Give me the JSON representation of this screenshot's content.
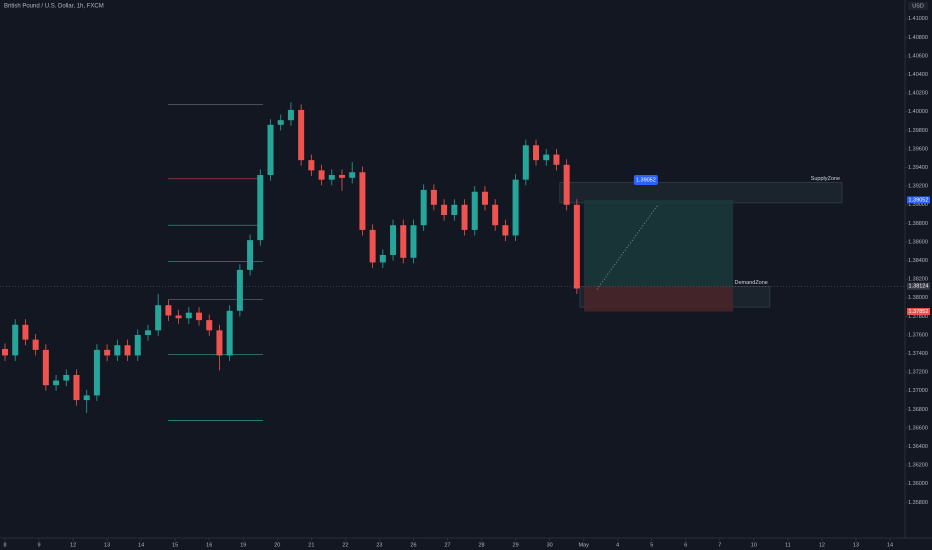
{
  "chart_data": {
    "type": "candlestick",
    "title": "British Pound / U.S. Dollar, 1h, FXCM",
    "currency": "USD",
    "up_color": "#26a69a",
    "down_color": "#ef5350",
    "xlim": [
      -0.147,
      26.44
    ],
    "ylim": [
      1.35417,
      1.41202
    ],
    "xticks": [
      {
        "value": 0,
        "label": "8"
      },
      {
        "value": 1,
        "label": "9"
      },
      {
        "value": 2,
        "label": "12"
      },
      {
        "value": 3,
        "label": "13"
      },
      {
        "value": 4,
        "label": "14"
      },
      {
        "value": 5,
        "label": "15"
      },
      {
        "value": 6,
        "label": "16"
      },
      {
        "value": 7,
        "label": "19"
      },
      {
        "value": 8,
        "label": "20"
      },
      {
        "value": 9,
        "label": "21"
      },
      {
        "value": 10,
        "label": "22"
      },
      {
        "value": 11,
        "label": "23"
      },
      {
        "value": 12,
        "label": "26"
      },
      {
        "value": 13,
        "label": "27"
      },
      {
        "value": 14,
        "label": "28"
      },
      {
        "value": 15,
        "label": "29"
      },
      {
        "value": 16,
        "label": "30"
      },
      {
        "value": 17,
        "label": "May"
      },
      {
        "value": 18,
        "label": "4"
      },
      {
        "value": 19,
        "label": "5"
      },
      {
        "value": 20,
        "label": "6"
      },
      {
        "value": 21,
        "label": "7"
      },
      {
        "value": 22,
        "label": "10"
      },
      {
        "value": 23,
        "label": "11"
      },
      {
        "value": 24,
        "label": "12"
      },
      {
        "value": 25,
        "label": "13"
      },
      {
        "value": 26,
        "label": "14"
      }
    ],
    "yticks": [
      {
        "value": 1.358,
        "label": "1.35800"
      },
      {
        "value": 1.36,
        "label": "1.36000"
      },
      {
        "value": 1.362,
        "label": "1.36200"
      },
      {
        "value": 1.364,
        "label": "1.36400"
      },
      {
        "value": 1.366,
        "label": "1.36600"
      },
      {
        "value": 1.368,
        "label": "1.36800"
      },
      {
        "value": 1.37,
        "label": "1.37000"
      },
      {
        "value": 1.372,
        "label": "1.37200"
      },
      {
        "value": 1.374,
        "label": "1.37400"
      },
      {
        "value": 1.376,
        "label": "1.37600"
      },
      {
        "value": 1.378,
        "label": "1.37800"
      },
      {
        "value": 1.38,
        "label": "1.38000"
      },
      {
        "value": 1.382,
        "label": "1.38200"
      },
      {
        "value": 1.384,
        "label": "1.38400"
      },
      {
        "value": 1.386,
        "label": "1.38600"
      },
      {
        "value": 1.388,
        "label": "1.38800"
      },
      {
        "value": 1.39,
        "label": "1.39000"
      },
      {
        "value": 1.392,
        "label": "1.39200"
      },
      {
        "value": 1.394,
        "label": "1.39400"
      },
      {
        "value": 1.396,
        "label": "1.39600"
      },
      {
        "value": 1.398,
        "label": "1.39800"
      },
      {
        "value": 1.4,
        "label": "1.40000"
      },
      {
        "value": 1.402,
        "label": "1.40200"
      },
      {
        "value": 1.404,
        "label": "1.40400"
      },
      {
        "value": 1.406,
        "label": "1.40600"
      },
      {
        "value": 1.408,
        "label": "1.40800"
      },
      {
        "value": 1.41,
        "label": "1.41000"
      }
    ],
    "x": [
      0,
      0.3,
      0.6,
      0.9,
      1.2,
      1.5,
      1.8,
      2.1,
      2.4,
      2.7,
      3,
      3.3,
      3.6,
      3.9,
      4.2,
      4.5,
      4.8,
      5.1,
      5.4,
      5.7,
      6,
      6.3,
      6.6,
      6.9,
      7.2,
      7.5,
      7.8,
      8.1,
      8.4,
      8.7,
      9,
      9.3,
      9.6,
      9.9,
      10.2,
      10.5,
      10.8,
      11.1,
      11.4,
      11.7,
      12,
      12.3,
      12.6,
      12.9,
      13.2,
      13.5,
      13.8,
      14.1,
      14.4,
      14.7,
      15,
      15.3,
      15.6,
      15.9,
      16.2,
      16.5,
      16.8
    ],
    "open": [
      1.3745,
      1.3738,
      1.3771,
      1.3755,
      1.3744,
      1.3706,
      1.3711,
      1.3717,
      1.369,
      1.3695,
      1.3744,
      1.3738,
      1.3749,
      1.3738,
      1.376,
      1.3765,
      1.3792,
      1.3781,
      1.3778,
      1.3784,
      1.3776,
      1.3765,
      1.3738,
      1.3786,
      1.383,
      1.3862,
      1.3932,
      1.3986,
      1.3991,
      1.4002,
      1.3948,
      1.3937,
      1.3927,
      1.3932,
      1.3929,
      1.3935,
      1.3873,
      1.3838,
      1.3846,
      1.3878,
      1.3843,
      1.3878,
      1.3916,
      1.39,
      1.3889,
      1.39,
      1.3873,
      1.3914,
      1.39,
      1.3878,
      1.3867,
      1.3927,
      1.3964,
      1.3948,
      1.3954,
      1.3943,
      1.39
    ],
    "high": [
      1.3751,
      1.3777,
      1.3777,
      1.3761,
      1.375,
      1.3717,
      1.3723,
      1.3723,
      1.3701,
      1.375,
      1.375,
      1.3755,
      1.3755,
      1.3766,
      1.3771,
      1.3804,
      1.3798,
      1.3787,
      1.379,
      1.379,
      1.3782,
      1.3771,
      1.3792,
      1.3836,
      1.3868,
      1.3938,
      1.3992,
      1.3997,
      1.401,
      1.4008,
      1.3954,
      1.3943,
      1.3938,
      1.3938,
      1.3946,
      1.3941,
      1.3879,
      1.3852,
      1.3884,
      1.3884,
      1.3884,
      1.3922,
      1.3922,
      1.3906,
      1.3906,
      1.3906,
      1.392,
      1.392,
      1.3906,
      1.3884,
      1.3933,
      1.397,
      1.397,
      1.396,
      1.396,
      1.3949,
      1.3906
    ],
    "low": [
      1.3732,
      1.3732,
      1.3749,
      1.3738,
      1.37,
      1.37,
      1.3705,
      1.3684,
      1.3676,
      1.3689,
      1.3732,
      1.3732,
      1.3732,
      1.3732,
      1.3754,
      1.3759,
      1.3775,
      1.3772,
      1.3772,
      1.377,
      1.3759,
      1.3722,
      1.3732,
      1.378,
      1.3824,
      1.3856,
      1.3926,
      1.398,
      1.3985,
      1.3942,
      1.3931,
      1.3921,
      1.3921,
      1.3915,
      1.3923,
      1.3867,
      1.3832,
      1.3832,
      1.384,
      1.3837,
      1.3837,
      1.3872,
      1.3894,
      1.3883,
      1.3883,
      1.3867,
      1.3867,
      1.3894,
      1.3872,
      1.3861,
      1.3861,
      1.3921,
      1.3942,
      1.3942,
      1.3937,
      1.3894,
      1.3804
    ],
    "close": [
      1.3738,
      1.3771,
      1.3755,
      1.3744,
      1.3706,
      1.3711,
      1.3717,
      1.369,
      1.3695,
      1.3744,
      1.3738,
      1.3749,
      1.3738,
      1.376,
      1.3765,
      1.3792,
      1.3781,
      1.3778,
      1.3784,
      1.3776,
      1.3765,
      1.3738,
      1.3786,
      1.383,
      1.3862,
      1.3932,
      1.3986,
      1.3991,
      1.4002,
      1.3948,
      1.3937,
      1.3927,
      1.3932,
      1.3929,
      1.3935,
      1.3873,
      1.3838,
      1.3846,
      1.3878,
      1.3843,
      1.3878,
      1.3916,
      1.39,
      1.3889,
      1.39,
      1.3873,
      1.3914,
      1.39,
      1.3878,
      1.3867,
      1.3927,
      1.3964,
      1.3948,
      1.3954,
      1.3943,
      1.39,
      1.381
    ],
    "levels": {
      "x0": 4.79,
      "x1": 7.58,
      "values": [
        1.4008,
        1.3928,
        1.3878,
        1.3839,
        1.3798,
        1.3739,
        1.3668
      ],
      "colors": [
        "#5d606b",
        "#b23b3b",
        "#2a8a7e",
        "#2a8a7e",
        "#5d606b",
        "#2a8a7e",
        "#2a8a7e"
      ]
    },
    "zones": [
      {
        "name": "SupplyZone",
        "top": 1.3924,
        "bottom": 1.3902,
        "x0": 16.3,
        "x1": 24.59,
        "color": "#2a3b3f"
      },
      {
        "name": "DemandZone",
        "top": 1.3812,
        "bottom": 1.379,
        "x0": 16.89,
        "x1": 22.47,
        "color": "#2a3b3f"
      }
    ],
    "position": {
      "x0": 17.01,
      "x1": 21.39,
      "entry": 1.38124,
      "target": 1.39052,
      "stop": 1.37852,
      "profit_color": "#1b3a3a",
      "loss_color": "#4a2428",
      "path_x": [
        17.39,
        19.18
      ],
      "path_y": [
        1.3809,
        1.39
      ]
    }
  }
}
